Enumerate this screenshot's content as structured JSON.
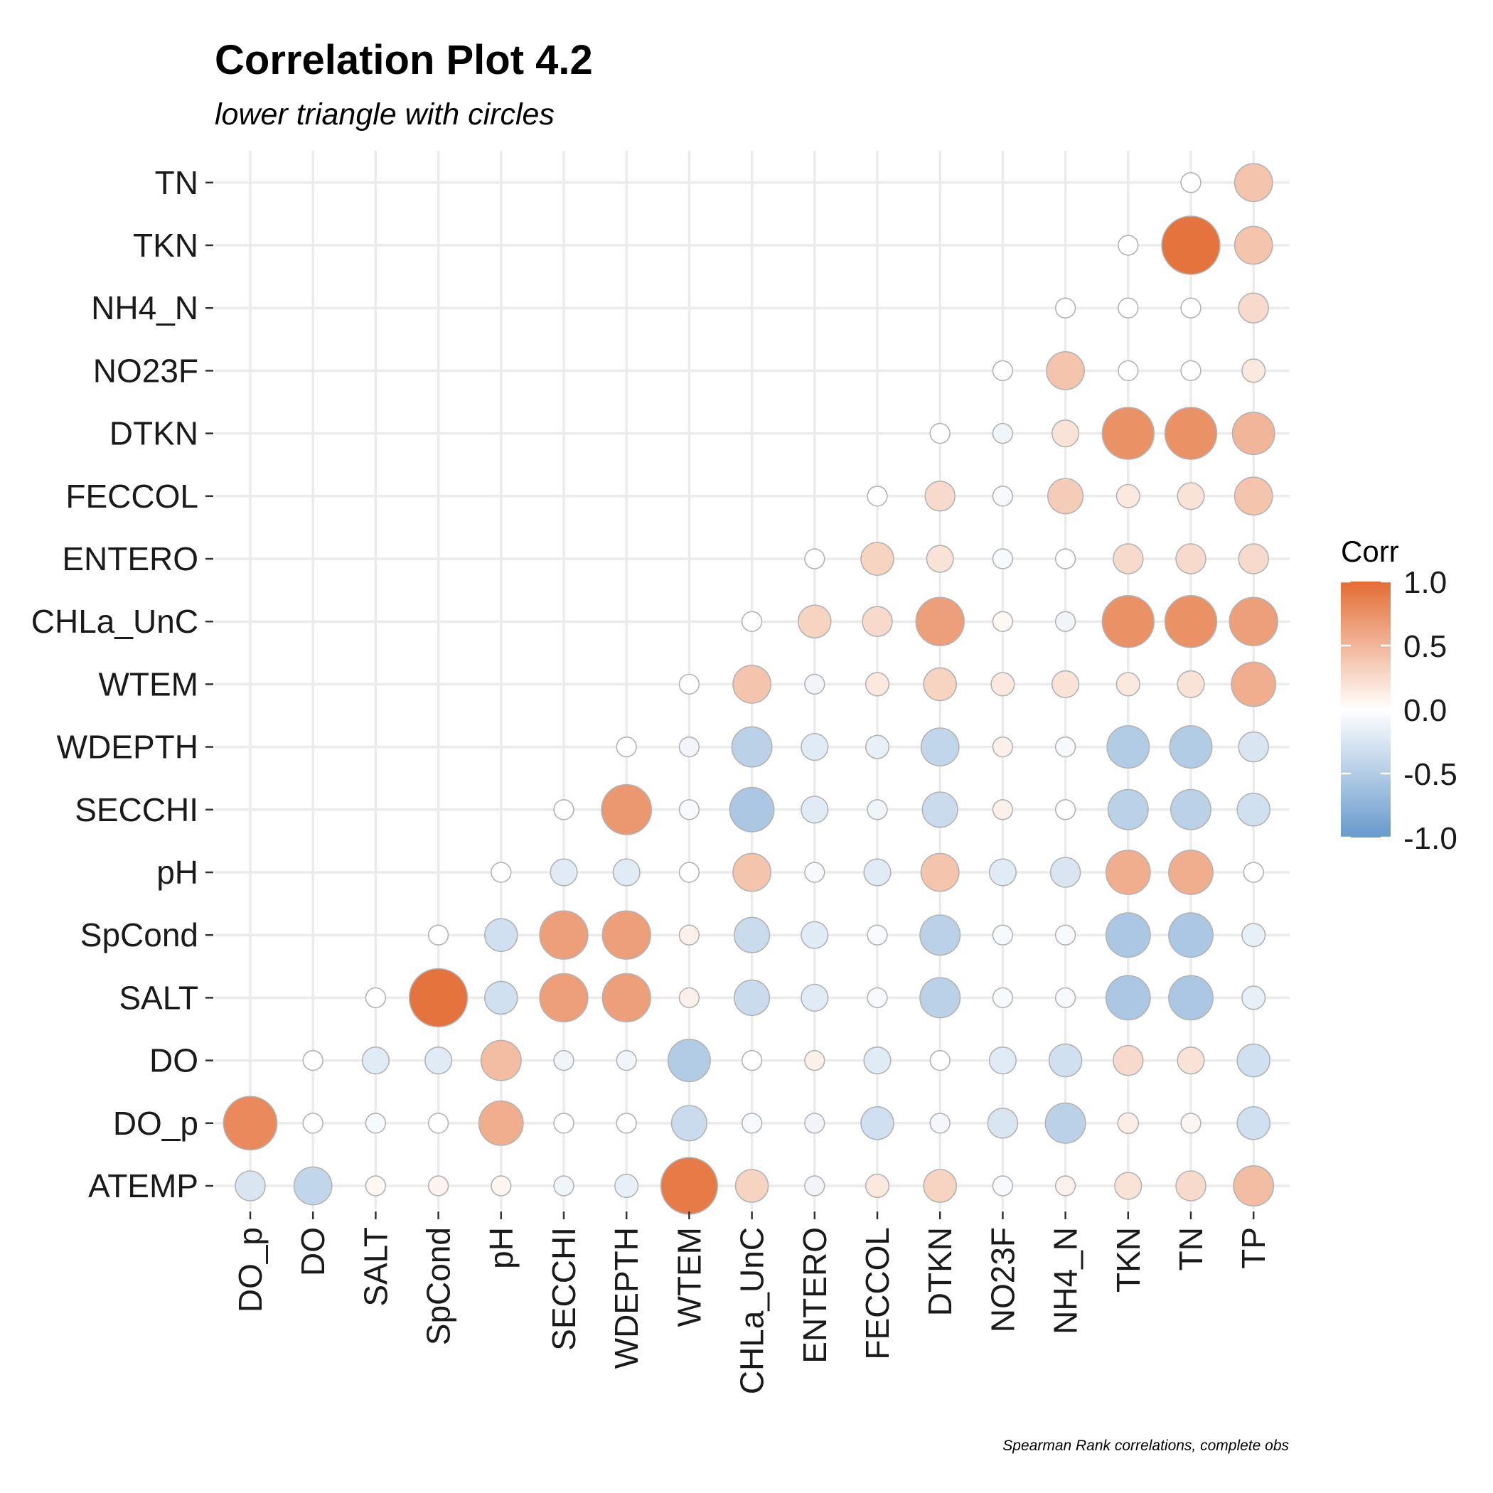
{
  "chart_data": {
    "type": "heatmap",
    "title": "Correlation Plot 4.2",
    "subtitle": "lower triangle with circles",
    "caption": "Spearman Rank correlations, complete obs",
    "xlabel": "",
    "ylabel": "",
    "x_categories": [
      "DO_p",
      "DO",
      "SALT",
      "SpCond",
      "pH",
      "SECCHI",
      "WDEPTH",
      "WTEM",
      "CHLa_UnC",
      "ENTERO",
      "FECCOL",
      "DTKN",
      "NO23F",
      "NH4_N",
      "TKN",
      "TN",
      "TP"
    ],
    "y_categories": [
      "ATEMP",
      "DO_p",
      "DO",
      "SALT",
      "SpCond",
      "pH",
      "SECCHI",
      "WDEPTH",
      "WTEM",
      "CHLa_UnC",
      "ENTERO",
      "FECCOL",
      "DTKN",
      "NO23F",
      "NH4_N",
      "TKN",
      "TN"
    ],
    "values": [
      [
        -0.25,
        -0.4,
        0.05,
        0.08,
        0.07,
        -0.1,
        -0.15,
        0.9,
        0.3,
        -0.1,
        0.15,
        0.3,
        -0.05,
        0.1,
        0.2,
        0.25,
        0.45
      ],
      [
        0.8,
        0.0,
        -0.05,
        0.0,
        0.55,
        0.0,
        0.0,
        -0.35,
        -0.05,
        -0.1,
        -0.3,
        -0.08,
        -0.25,
        -0.45,
        0.12,
        0.07,
        -0.3
      ],
      [
        null,
        0.0,
        -0.2,
        -0.2,
        0.45,
        -0.1,
        -0.1,
        -0.5,
        0.0,
        0.1,
        -0.2,
        0.0,
        -0.2,
        -0.3,
        0.25,
        0.2,
        -0.3
      ],
      [
        null,
        null,
        0.0,
        0.95,
        -0.3,
        0.65,
        0.65,
        0.1,
        -0.35,
        -0.2,
        -0.05,
        -0.45,
        -0.05,
        -0.05,
        -0.55,
        -0.55,
        -0.15
      ],
      [
        null,
        null,
        null,
        0.0,
        -0.3,
        0.65,
        0.65,
        0.1,
        -0.35,
        -0.2,
        -0.05,
        -0.45,
        -0.05,
        -0.05,
        -0.55,
        -0.55,
        -0.15
      ],
      [
        null,
        null,
        null,
        null,
        0.0,
        -0.2,
        -0.2,
        0.0,
        0.4,
        -0.05,
        -0.2,
        0.4,
        -0.2,
        -0.25,
        0.55,
        0.55,
        0.0
      ],
      [
        null,
        null,
        null,
        null,
        null,
        0.0,
        0.7,
        -0.05,
        -0.55,
        -0.2,
        -0.1,
        -0.35,
        0.1,
        0.0,
        -0.45,
        -0.45,
        -0.3
      ],
      [
        null,
        null,
        null,
        null,
        null,
        null,
        0.0,
        -0.1,
        -0.45,
        -0.2,
        -0.15,
        -0.4,
        0.1,
        -0.05,
        -0.5,
        -0.5,
        -0.25
      ],
      [
        null,
        null,
        null,
        null,
        null,
        null,
        null,
        0.0,
        0.4,
        -0.1,
        0.15,
        0.3,
        0.15,
        0.2,
        0.15,
        0.2,
        0.55
      ],
      [
        null,
        null,
        null,
        null,
        null,
        null,
        null,
        null,
        0.0,
        0.3,
        0.25,
        0.65,
        0.05,
        -0.1,
        0.75,
        0.75,
        0.65
      ],
      [
        null,
        null,
        null,
        null,
        null,
        null,
        null,
        null,
        null,
        0.0,
        0.3,
        0.2,
        -0.05,
        0.0,
        0.25,
        0.25,
        0.25
      ],
      [
        null,
        null,
        null,
        null,
        null,
        null,
        null,
        null,
        null,
        null,
        0.0,
        0.25,
        -0.05,
        0.35,
        0.15,
        0.2,
        0.4
      ],
      [
        null,
        null,
        null,
        null,
        null,
        null,
        null,
        null,
        null,
        null,
        null,
        0.0,
        -0.1,
        0.2,
        0.75,
        0.75,
        0.5
      ],
      [
        null,
        null,
        null,
        null,
        null,
        null,
        null,
        null,
        null,
        null,
        null,
        null,
        0.0,
        0.4,
        0.0,
        0.0,
        0.15
      ],
      [
        null,
        null,
        null,
        null,
        null,
        null,
        null,
        null,
        null,
        null,
        null,
        null,
        null,
        0.0,
        0.0,
        0.0,
        0.25
      ],
      [
        null,
        null,
        null,
        null,
        null,
        null,
        null,
        null,
        null,
        null,
        null,
        null,
        null,
        null,
        0.0,
        0.95,
        0.4
      ],
      [
        null,
        null,
        null,
        null,
        null,
        null,
        null,
        null,
        null,
        null,
        null,
        null,
        null,
        null,
        null,
        0.0,
        0.4
      ]
    ],
    "legend": {
      "title": "Corr",
      "labels": [
        "1.0",
        "0.5",
        "0.0",
        "-0.5",
        "-1.0"
      ],
      "breaks": [
        1.0,
        0.5,
        0.0,
        -0.5,
        -1.0
      ],
      "limits": [
        -1,
        1
      ],
      "placement": "right"
    },
    "colors": {
      "low": "#6699cc",
      "mid": "#ffffff",
      "high": "#e36c33",
      "circle_border": "#b3b3b3",
      "grid": "#ebebeb"
    }
  }
}
